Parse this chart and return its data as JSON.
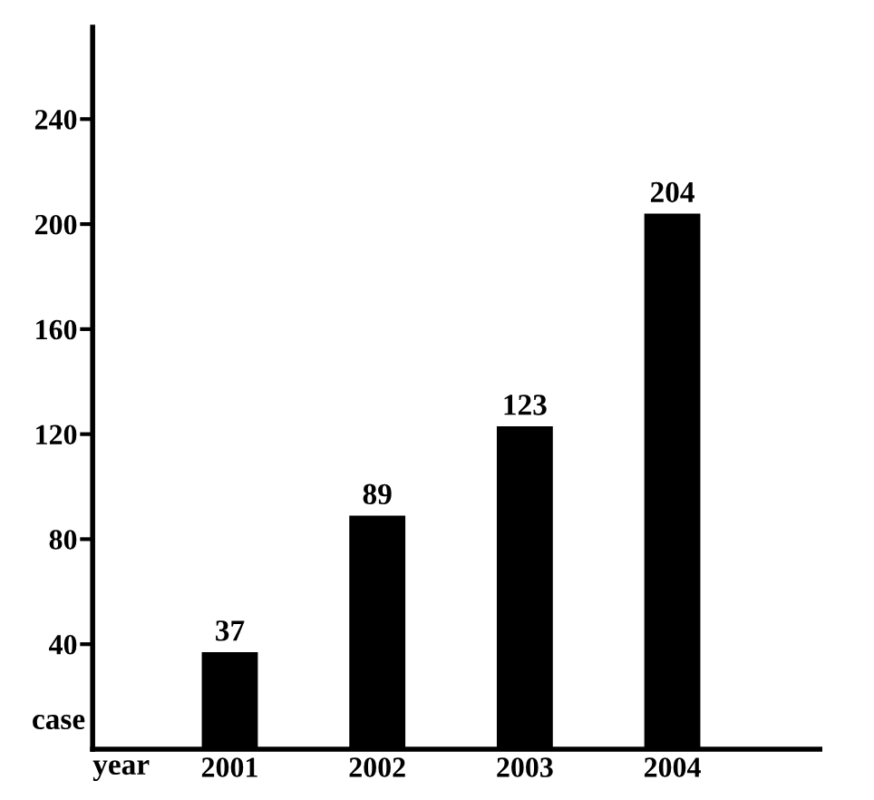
{
  "chart_data": {
    "type": "bar",
    "xlabel": "year",
    "ylabel": "case",
    "categories": [
      "2001",
      "2002",
      "2003",
      "2004"
    ],
    "values": [
      37,
      89,
      123,
      204
    ],
    "color": "#000000",
    "ylim": [
      0,
      275
    ],
    "yticks": [
      40,
      80,
      120,
      160,
      200,
      240
    ],
    "data_labels": true
  }
}
